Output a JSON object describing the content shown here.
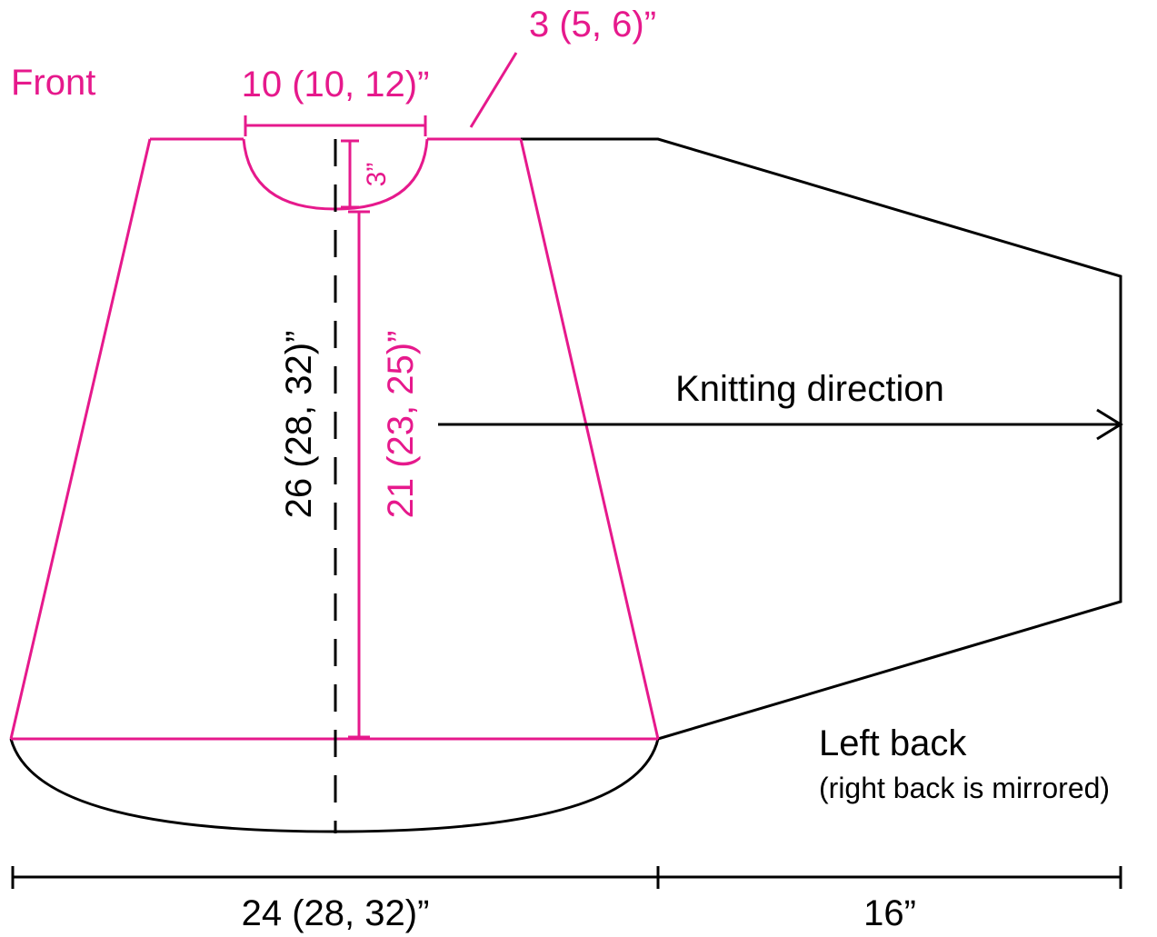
{
  "colors": {
    "front": "#e6198c",
    "back": "#000000",
    "background": "#ffffff"
  },
  "labels": {
    "front_title": "Front",
    "neck_width": "10 (10, 12)”",
    "shoulder_width": "3 (5, 6)”",
    "neck_depth": "3”",
    "front_length": "21 (23, 25)”",
    "total_length": "26 (28, 32)”",
    "knitting_direction": "Knitting direction",
    "back_title": "Left back",
    "back_note": "(right back is mirrored)",
    "body_width": "24 (28, 32)”",
    "sleeve_length": "16”"
  }
}
